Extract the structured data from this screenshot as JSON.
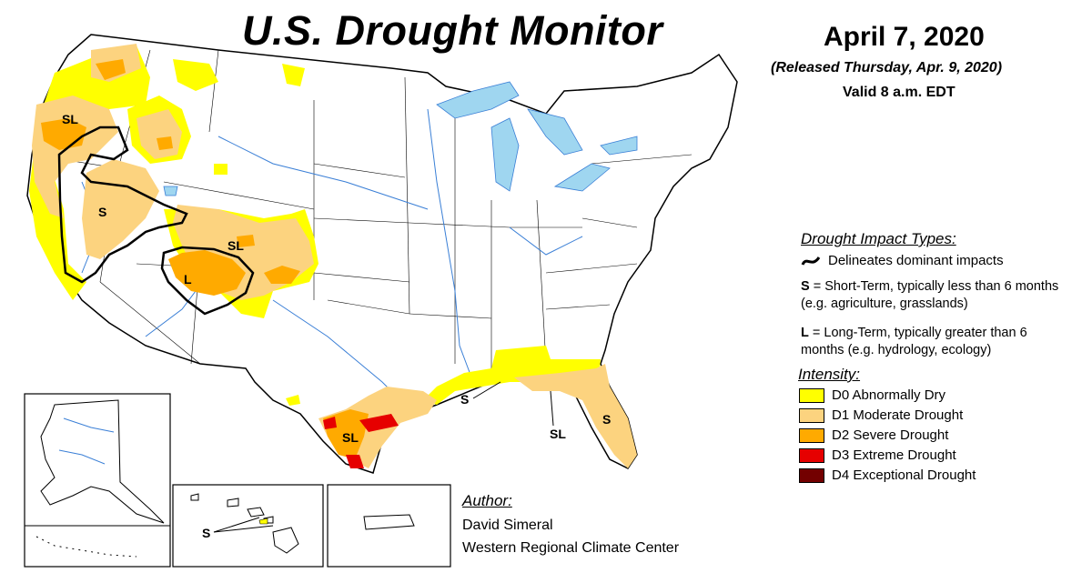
{
  "header": {
    "title": "U.S. Drought Monitor",
    "date": "April 7, 2020",
    "released": "(Released Thursday, Apr. 9, 2020)",
    "valid": "Valid 8 a.m. EDT"
  },
  "impacts": {
    "heading": "Drought Impact Types:",
    "delineates": "Delineates dominant impacts",
    "short_key": "S",
    "short_text": " = Short-Term, typically less than 6 months (e.g. agriculture, grasslands)",
    "long_key": "L",
    "long_text": " = Long-Term, typically greater than 6 months (e.g. hydrology, ecology)"
  },
  "intensity": {
    "heading": "Intensity:",
    "levels": [
      {
        "label": "D0 Abnormally Dry",
        "color": "#ffff00"
      },
      {
        "label": "D1 Moderate Drought",
        "color": "#fcd37f"
      },
      {
        "label": "D2 Severe Drought",
        "color": "#ffaa00"
      },
      {
        "label": "D3 Extreme Drought",
        "color": "#e60000"
      },
      {
        "label": "D4 Exceptional Drought",
        "color": "#730000"
      }
    ]
  },
  "map_labels": {
    "oregon": "SL",
    "nevada": "S",
    "colorado": "SL",
    "four_corners": "L",
    "gulf_coast": "S",
    "florida_panhandle": "SL",
    "florida": "S",
    "south_texas": "SL",
    "hawaii": "S"
  },
  "author": {
    "heading": "Author:",
    "name": "David Simeral",
    "org": "Western Regional Climate Center"
  },
  "colors": {
    "water": "#9fd6f0",
    "d0": "#ffff00",
    "d1": "#fcd37f",
    "d2": "#ffaa00",
    "d3": "#e60000"
  }
}
